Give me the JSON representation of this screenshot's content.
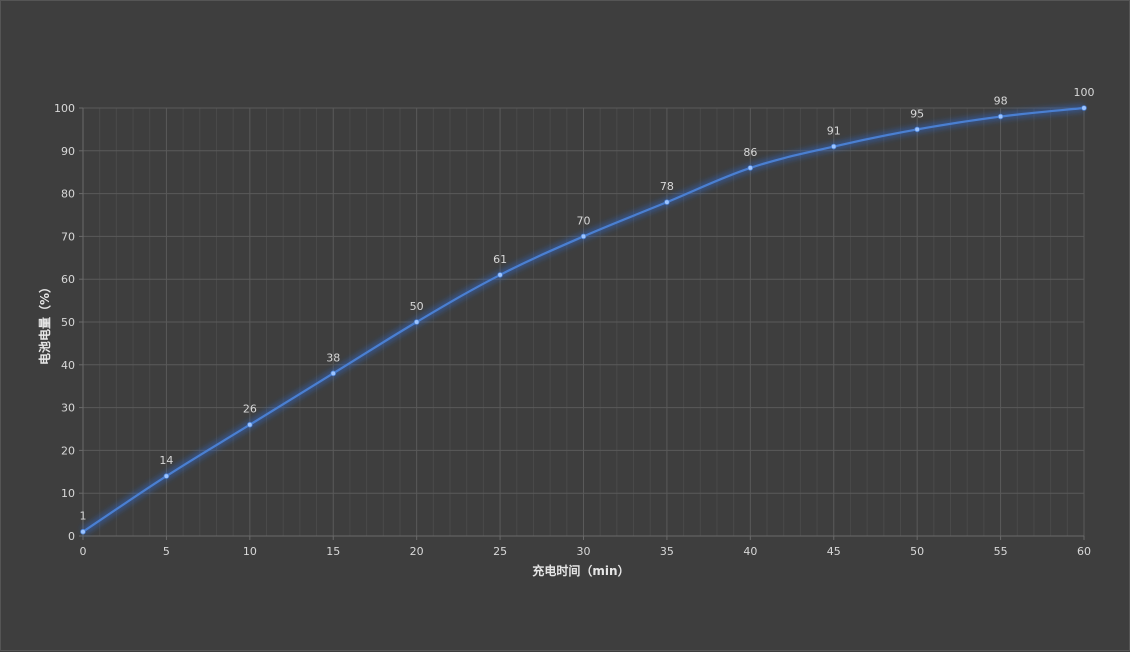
{
  "chart_data": {
    "type": "line",
    "xlabel": "充电时间（min）",
    "ylabel": "电池电量（%）",
    "x": [
      0,
      5,
      10,
      15,
      20,
      25,
      30,
      35,
      40,
      45,
      50,
      55,
      60
    ],
    "series": [
      {
        "values": [
          1,
          14,
          26,
          38,
          50,
          61,
          70,
          78,
          86,
          91,
          95,
          98,
          100
        ]
      }
    ],
    "xlim": [
      0,
      60
    ],
    "ylim": [
      0,
      100
    ],
    "xticks": [
      0,
      5,
      10,
      15,
      20,
      25,
      30,
      35,
      40,
      45,
      50,
      55,
      60
    ],
    "yticks": [
      0,
      10,
      20,
      30,
      40,
      50,
      60,
      70,
      80,
      90,
      100
    ],
    "grid": true,
    "minor_grid": true,
    "data_labels": true,
    "smooth": true,
    "legend": "none"
  },
  "colors": {
    "background": "#3e3e3e",
    "line": "#4a7fd1",
    "glow": "#2f66c8",
    "marker": "#9cc4ff",
    "major_grid": "#5a5a5a",
    "minor_grid": "#4a4a4a",
    "text": "#d8d8d8"
  }
}
